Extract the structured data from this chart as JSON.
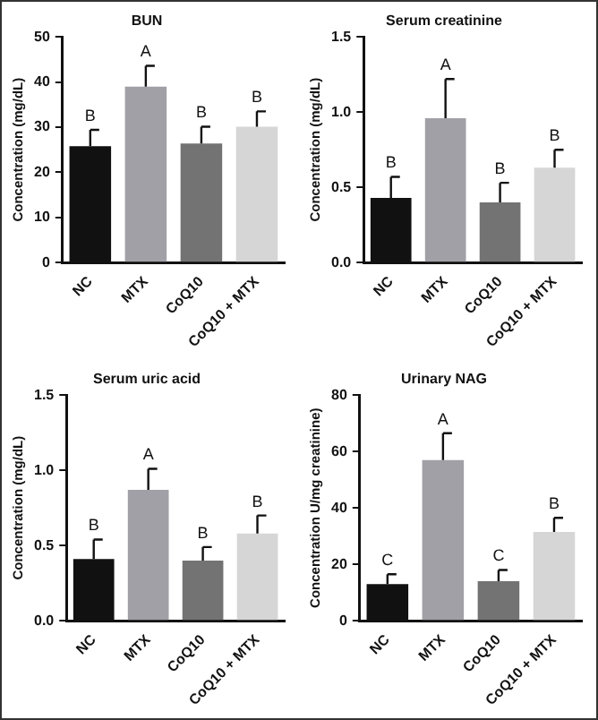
{
  "chart_data": [
    {
      "type": "bar",
      "title": "BUN",
      "ylabel": "Concentration (mg/dL)",
      "categories": [
        "NC",
        "MTX",
        "CoQ10",
        "CoQ10 + MTX"
      ],
      "values": [
        25.8,
        39,
        26.4,
        30.1
      ],
      "colors": [
        "#111111",
        "#a0a0a6",
        "#737373",
        "#d6d6d6"
      ],
      "errors": [
        [
          25.8,
          29.4
        ],
        [
          39,
          43.6
        ],
        [
          26.4,
          30.1
        ],
        [
          30.1,
          33.5
        ]
      ],
      "ylim": [
        0,
        50
      ],
      "yticks": [
        0,
        10,
        20,
        30,
        40,
        50
      ],
      "grid": false,
      "legend": false,
      "annotations": [
        {
          "text": "B",
          "x": "NC",
          "y": 29.4
        },
        {
          "text": "A",
          "x": "MTX",
          "y": 43.6
        },
        {
          "text": "B",
          "x": "CoQ10",
          "y": 30.1
        },
        {
          "text": "B",
          "x": "CoQ10 + MTX",
          "y": 33.5
        }
      ]
    },
    {
      "type": "bar",
      "title": "Serum creatinine",
      "ylabel": "Concentration (mg/dL)",
      "categories": [
        "NC",
        "MTX",
        "CoQ10",
        "CoQ10 + MTX"
      ],
      "values": [
        0.43,
        0.96,
        0.4,
        0.63
      ],
      "colors": [
        "#111111",
        "#a0a0a6",
        "#737373",
        "#d6d6d6"
      ],
      "errors": [
        [
          0.43,
          0.57
        ],
        [
          0.96,
          1.22
        ],
        [
          0.4,
          0.53
        ],
        [
          0.63,
          0.75
        ]
      ],
      "ylim": [
        0,
        1.5
      ],
      "yticks": [
        {
          "value": 0,
          "label": "0.0"
        },
        {
          "value": 0.5,
          "label": "0.5"
        },
        {
          "value": 1,
          "label": "1.0"
        },
        {
          "value": 1.5,
          "label": "1.5"
        }
      ],
      "grid": false,
      "legend": false,
      "annotations": [
        {
          "text": "B",
          "x": "NC",
          "y": 0.57
        },
        {
          "text": "A",
          "x": "MTX",
          "y": 1.22
        },
        {
          "text": "B",
          "x": "CoQ10",
          "y": 0.53
        },
        {
          "text": "B",
          "x": "CoQ10 + MTX",
          "y": 0.75
        }
      ]
    },
    {
      "type": "bar",
      "title": "Serum uric acid",
      "ylabel": "Concentration (mg/dL)",
      "categories": [
        "NC",
        "MTX",
        "CoQ10",
        "CoQ10 + MTX"
      ],
      "values": [
        0.41,
        0.87,
        0.4,
        0.58
      ],
      "colors": [
        "#111111",
        "#a0a0a6",
        "#737373",
        "#d6d6d6"
      ],
      "errors": [
        [
          0.41,
          0.54
        ],
        [
          0.87,
          1.01
        ],
        [
          0.4,
          0.49
        ],
        [
          0.58,
          0.7
        ]
      ],
      "ylim": [
        0,
        1.5
      ],
      "yticks": [
        {
          "value": 0,
          "label": "0.0"
        },
        {
          "value": 0.5,
          "label": "0.5"
        },
        {
          "value": 1,
          "label": "1.0"
        },
        {
          "value": 1.5,
          "label": "1.5"
        }
      ],
      "grid": false,
      "legend": false,
      "annotations": [
        {
          "text": "B",
          "x": "NC",
          "y": 0.54
        },
        {
          "text": "A",
          "x": "MTX",
          "y": 1.01
        },
        {
          "text": "B",
          "x": "CoQ10",
          "y": 0.49
        },
        {
          "text": "B",
          "x": "CoQ10 + MTX",
          "y": 0.7
        }
      ]
    },
    {
      "type": "bar",
      "title": "Urinary NAG",
      "ylabel": "Concentration U/mg creatinine)",
      "categories": [
        "NC",
        "MTX",
        "CoQ10",
        "CoQ10 + MTX"
      ],
      "values": [
        13,
        57,
        14,
        31.5
      ],
      "colors": [
        "#111111",
        "#a0a0a6",
        "#737373",
        "#d6d6d6"
      ],
      "errors": [
        [
          13,
          16.5
        ],
        [
          57,
          66.5
        ],
        [
          14,
          18
        ],
        [
          31.5,
          36.5
        ]
      ],
      "ylim": [
        0,
        80
      ],
      "yticks": [
        0,
        20,
        40,
        60,
        80
      ],
      "grid": false,
      "legend": false,
      "annotations": [
        {
          "text": "C",
          "x": "NC",
          "y": 16.5
        },
        {
          "text": "A",
          "x": "MTX",
          "y": 66.5
        },
        {
          "text": "C",
          "x": "CoQ10",
          "y": 18
        },
        {
          "text": "B",
          "x": "CoQ10 + MTX",
          "y": 36.5
        }
      ]
    }
  ]
}
